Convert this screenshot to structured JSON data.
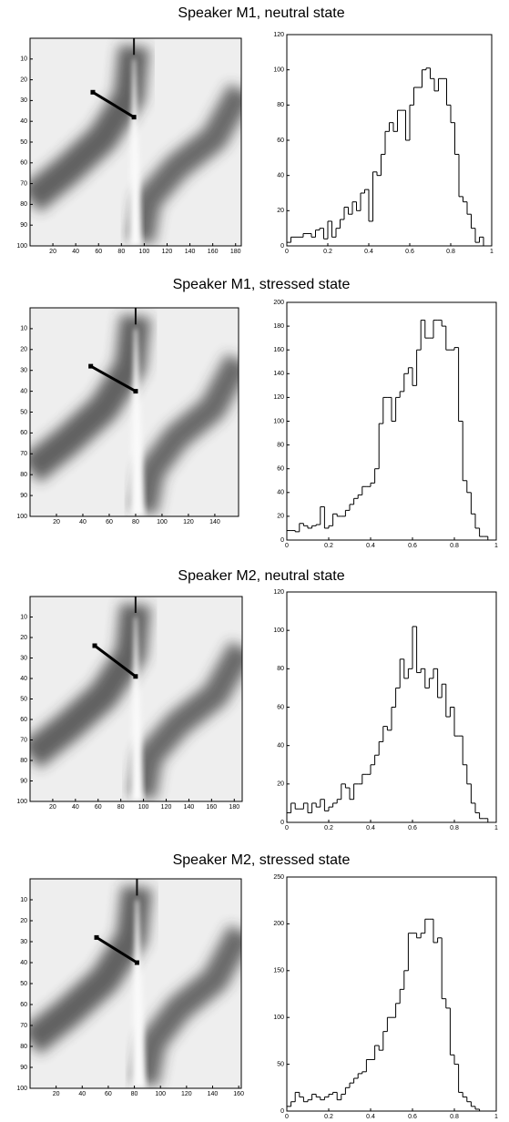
{
  "chart_data": [
    {
      "type": "heatmap",
      "title": "Speaker M1, neutral state",
      "xlim": [
        0,
        185
      ],
      "xticks": [
        20,
        40,
        60,
        80,
        100,
        120,
        140,
        160,
        180
      ],
      "ylim": [
        100,
        0
      ],
      "yticks": [
        10,
        20,
        30,
        40,
        50,
        60,
        70,
        80,
        90,
        100
      ],
      "segment": {
        "x": [
          55,
          91
        ],
        "y": [
          26,
          38
        ]
      },
      "color": "#000000"
    },
    {
      "type": "histogram",
      "bins": [
        0,
        0.02,
        0.04,
        0.06,
        0.08,
        0.1,
        0.12,
        0.14,
        0.16,
        0.18,
        0.2,
        0.22,
        0.24,
        0.26,
        0.28,
        0.3,
        0.32,
        0.34,
        0.36,
        0.38,
        0.4,
        0.42,
        0.44,
        0.46,
        0.48,
        0.5,
        0.52,
        0.54,
        0.56,
        0.58,
        0.6,
        0.62,
        0.64,
        0.66,
        0.68,
        0.7,
        0.72,
        0.74,
        0.76,
        0.78,
        0.8,
        0.82,
        0.84,
        0.86,
        0.88,
        0.9,
        0.92,
        0.94,
        0.96,
        0.98,
        1
      ],
      "values": [
        2,
        5,
        5,
        5,
        7,
        7,
        5,
        9,
        10,
        4,
        14,
        5,
        10,
        15,
        22,
        18,
        25,
        20,
        30,
        32,
        14,
        42,
        40,
        52,
        65,
        70,
        65,
        77,
        77,
        60,
        80,
        90,
        90,
        100,
        101,
        95,
        88,
        95,
        95,
        80,
        70,
        52,
        28,
        25,
        18,
        10,
        2,
        5,
        0,
        0
      ],
      "xlim": [
        0,
        1
      ],
      "xticks": [
        0,
        0.2,
        0.4,
        0.6,
        0.8,
        1
      ],
      "ylim": [
        0,
        120
      ],
      "yticks": [
        0,
        20,
        40,
        60,
        80,
        100,
        120
      ],
      "color": "#000000"
    },
    {
      "type": "heatmap",
      "title": "Speaker M1, stressed state",
      "xlim": [
        0,
        158
      ],
      "xticks": [
        20,
        40,
        60,
        80,
        100,
        120,
        140
      ],
      "ylim": [
        100,
        0
      ],
      "yticks": [
        10,
        20,
        30,
        40,
        50,
        60,
        70,
        80,
        90,
        100
      ],
      "segment": {
        "x": [
          46,
          80
        ],
        "y": [
          28,
          40
        ]
      },
      "color": "#000000"
    },
    {
      "type": "histogram",
      "bins": [
        0,
        0.02,
        0.04,
        0.06,
        0.08,
        0.1,
        0.12,
        0.14,
        0.16,
        0.18,
        0.2,
        0.22,
        0.24,
        0.26,
        0.28,
        0.3,
        0.32,
        0.34,
        0.36,
        0.38,
        0.4,
        0.42,
        0.44,
        0.46,
        0.48,
        0.5,
        0.52,
        0.54,
        0.56,
        0.58,
        0.6,
        0.62,
        0.64,
        0.66,
        0.68,
        0.7,
        0.72,
        0.74,
        0.76,
        0.78,
        0.8,
        0.82,
        0.84,
        0.86,
        0.88,
        0.9,
        0.92,
        0.94,
        0.96,
        0.98,
        1
      ],
      "values": [
        8,
        8,
        7,
        14,
        12,
        10,
        12,
        13,
        28,
        10,
        12,
        22,
        20,
        20,
        25,
        30,
        35,
        38,
        45,
        45,
        48,
        60,
        98,
        120,
        120,
        100,
        120,
        125,
        140,
        145,
        130,
        160,
        185,
        170,
        170,
        185,
        185,
        180,
        160,
        160,
        162,
        100,
        50,
        40,
        22,
        10,
        3,
        3,
        0,
        0
      ],
      "xlim": [
        0,
        1
      ],
      "xticks": [
        0,
        0.2,
        0.4,
        0.6,
        0.8,
        1
      ],
      "ylim": [
        0,
        200
      ],
      "yticks": [
        0,
        20,
        40,
        60,
        80,
        100,
        120,
        140,
        160,
        180,
        200
      ],
      "color": "#000000"
    },
    {
      "type": "heatmap",
      "title": "Speaker M2, neutral state",
      "xlim": [
        0,
        187
      ],
      "xticks": [
        20,
        40,
        60,
        80,
        100,
        120,
        140,
        160,
        180
      ],
      "ylim": [
        100,
        0
      ],
      "yticks": [
        10,
        20,
        30,
        40,
        50,
        60,
        70,
        80,
        90,
        100
      ],
      "segment": {
        "x": [
          57,
          93
        ],
        "y": [
          24,
          39
        ]
      },
      "color": "#000000"
    },
    {
      "type": "histogram",
      "bins": [
        0,
        0.02,
        0.04,
        0.06,
        0.08,
        0.1,
        0.12,
        0.14,
        0.16,
        0.18,
        0.2,
        0.22,
        0.24,
        0.26,
        0.28,
        0.3,
        0.32,
        0.34,
        0.36,
        0.38,
        0.4,
        0.42,
        0.44,
        0.46,
        0.48,
        0.5,
        0.52,
        0.54,
        0.56,
        0.58,
        0.6,
        0.62,
        0.64,
        0.66,
        0.68,
        0.7,
        0.72,
        0.74,
        0.76,
        0.78,
        0.8,
        0.82,
        0.84,
        0.86,
        0.88,
        0.9,
        0.92,
        0.94,
        0.96,
        0.98,
        1
      ],
      "values": [
        5,
        10,
        7,
        7,
        10,
        5,
        10,
        8,
        12,
        6,
        8,
        10,
        12,
        20,
        18,
        12,
        20,
        20,
        25,
        25,
        30,
        35,
        42,
        50,
        48,
        60,
        70,
        85,
        75,
        80,
        102,
        78,
        80,
        70,
        75,
        80,
        65,
        72,
        55,
        60,
        45,
        45,
        30,
        20,
        10,
        5,
        2,
        2,
        0,
        0
      ],
      "xlim": [
        0,
        1
      ],
      "xticks": [
        0,
        0.2,
        0.4,
        0.6,
        0.8,
        1
      ],
      "ylim": [
        0,
        120
      ],
      "yticks": [
        0,
        20,
        40,
        60,
        80,
        100,
        120
      ],
      "color": "#000000"
    },
    {
      "type": "heatmap",
      "title": "Speaker M2, stressed state",
      "xlim": [
        0,
        162
      ],
      "xticks": [
        20,
        40,
        60,
        80,
        100,
        120,
        140,
        160
      ],
      "ylim": [
        100,
        0
      ],
      "yticks": [
        10,
        20,
        30,
        40,
        50,
        60,
        70,
        80,
        90,
        100
      ],
      "segment": {
        "x": [
          51,
          82
        ],
        "y": [
          28,
          40
        ]
      },
      "color": "#000000"
    },
    {
      "type": "histogram",
      "bins": [
        0,
        0.02,
        0.04,
        0.06,
        0.08,
        0.1,
        0.12,
        0.14,
        0.16,
        0.18,
        0.2,
        0.22,
        0.24,
        0.26,
        0.28,
        0.3,
        0.32,
        0.34,
        0.36,
        0.38,
        0.4,
        0.42,
        0.44,
        0.46,
        0.48,
        0.5,
        0.52,
        0.54,
        0.56,
        0.58,
        0.6,
        0.62,
        0.64,
        0.66,
        0.68,
        0.7,
        0.72,
        0.74,
        0.76,
        0.78,
        0.8,
        0.82,
        0.84,
        0.86,
        0.88,
        0.9,
        0.92,
        0.94,
        0.96,
        0.98,
        1
      ],
      "values": [
        5,
        10,
        20,
        15,
        10,
        12,
        18,
        15,
        12,
        15,
        18,
        20,
        12,
        18,
        25,
        30,
        35,
        40,
        42,
        55,
        55,
        70,
        65,
        85,
        100,
        100,
        115,
        130,
        150,
        190,
        190,
        185,
        190,
        205,
        205,
        180,
        185,
        120,
        110,
        60,
        50,
        20,
        15,
        10,
        5,
        2,
        0,
        0,
        0,
        0
      ],
      "xlim": [
        0,
        1
      ],
      "xticks": [
        0,
        0.2,
        0.4,
        0.6,
        0.8,
        1
      ],
      "ylim": [
        0,
        250
      ],
      "yticks": [
        0,
        50,
        100,
        150,
        200,
        250
      ],
      "color": "#000000"
    }
  ]
}
